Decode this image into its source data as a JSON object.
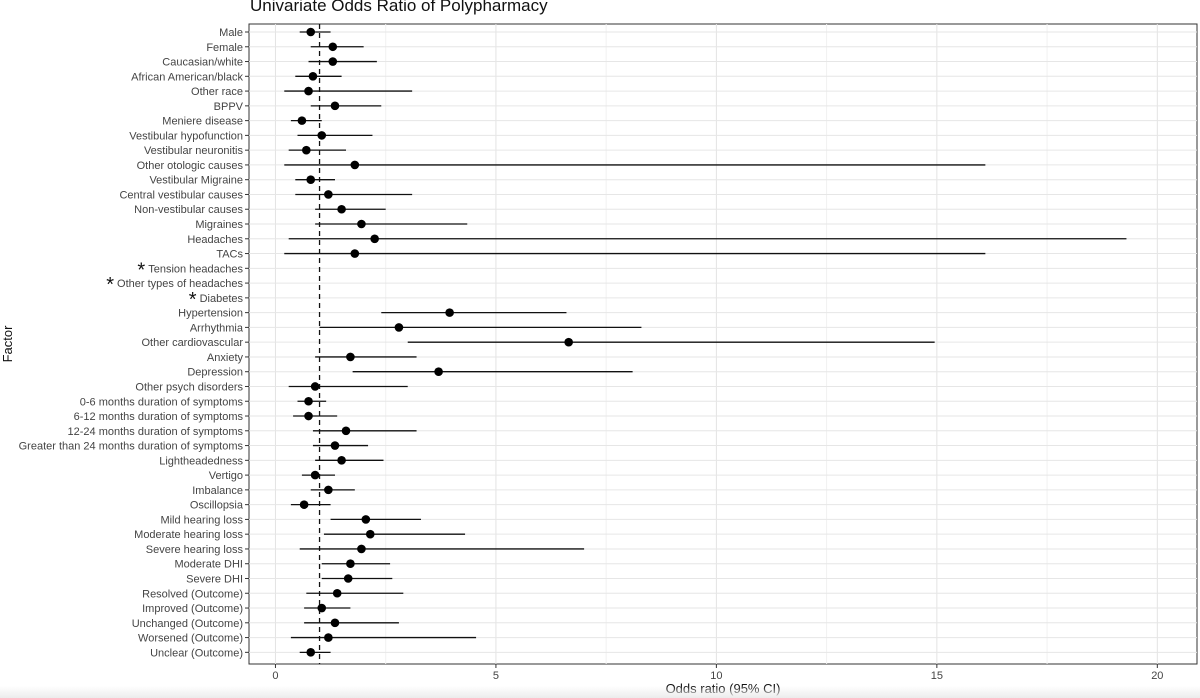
{
  "chart_data": {
    "type": "scatter",
    "title": "Univariate Odds Ratio of Polypharmacy",
    "xlabel": "Odds ratio (95% CI)",
    "ylabel": "Factor",
    "xlim": [
      -0.6,
      20.9
    ],
    "xticks": [
      0,
      5,
      10,
      15,
      20
    ],
    "reference_line": 1,
    "grid": true,
    "significance_marker": "*",
    "factors": [
      {
        "label": "Male",
        "or": 0.8,
        "lo": 0.55,
        "hi": 1.25
      },
      {
        "label": "Female",
        "or": 1.3,
        "lo": 0.8,
        "hi": 2.0
      },
      {
        "label": "Caucasian/white",
        "or": 1.3,
        "lo": 0.75,
        "hi": 2.3
      },
      {
        "label": "African American/black",
        "or": 0.85,
        "lo": 0.45,
        "hi": 1.5
      },
      {
        "label": "Other race",
        "or": 0.75,
        "lo": 0.2,
        "hi": 3.1
      },
      {
        "label": "BPPV",
        "or": 1.35,
        "lo": 0.8,
        "hi": 2.4
      },
      {
        "label": "Meniere disease",
        "or": 0.6,
        "lo": 0.35,
        "hi": 1.05
      },
      {
        "label": "Vestibular hypofunction",
        "or": 1.05,
        "lo": 0.5,
        "hi": 2.2
      },
      {
        "label": "Vestibular neuronitis",
        "or": 0.7,
        "lo": 0.3,
        "hi": 1.6
      },
      {
        "label": "Other otologic causes",
        "or": 1.8,
        "lo": 0.2,
        "hi": 16.1
      },
      {
        "label": "Vestibular Migraine",
        "or": 0.8,
        "lo": 0.45,
        "hi": 1.35
      },
      {
        "label": "Central vestibular causes",
        "or": 1.2,
        "lo": 0.45,
        "hi": 3.1
      },
      {
        "label": "Non-vestibular causes",
        "or": 1.5,
        "lo": 0.9,
        "hi": 2.5
      },
      {
        "label": "Migraines",
        "or": 1.95,
        "lo": 0.9,
        "hi": 4.35
      },
      {
        "label": "Headaches",
        "or": 2.25,
        "lo": 0.3,
        "hi": 19.3
      },
      {
        "label": "TACs",
        "or": 1.8,
        "lo": 0.2,
        "hi": 16.1
      },
      {
        "label": "Tension headaches",
        "or": null,
        "lo": null,
        "hi": null,
        "flagged": true
      },
      {
        "label": "Other types of headaches",
        "or": null,
        "lo": null,
        "hi": null,
        "flagged": true
      },
      {
        "label": "Diabetes",
        "or": null,
        "lo": null,
        "hi": null,
        "flagged": true
      },
      {
        "label": "Hypertension",
        "or": 3.95,
        "lo": 2.4,
        "hi": 6.6
      },
      {
        "label": "Arrhythmia",
        "or": 2.8,
        "lo": 1.0,
        "hi": 8.3
      },
      {
        "label": "Other cardiovascular",
        "or": 6.65,
        "lo": 3.0,
        "hi": 14.95
      },
      {
        "label": "Anxiety",
        "or": 1.7,
        "lo": 0.9,
        "hi": 3.2
      },
      {
        "label": "Depression",
        "or": 3.7,
        "lo": 1.75,
        "hi": 8.1
      },
      {
        "label": "Other psych disorders",
        "or": 0.9,
        "lo": 0.3,
        "hi": 3.0
      },
      {
        "label": "0-6 months duration of symptoms",
        "or": 0.75,
        "lo": 0.5,
        "hi": 1.15
      },
      {
        "label": "6-12 months duration of symptoms",
        "or": 0.75,
        "lo": 0.4,
        "hi": 1.4
      },
      {
        "label": "12-24 months duration of symptoms",
        "or": 1.6,
        "lo": 0.85,
        "hi": 3.2
      },
      {
        "label": "Greater than 24 months duration of symptoms",
        "or": 1.35,
        "lo": 0.85,
        "hi": 2.1
      },
      {
        "label": "Lightheadedness",
        "or": 1.5,
        "lo": 0.9,
        "hi": 2.45
      },
      {
        "label": "Vertigo",
        "or": 0.9,
        "lo": 0.6,
        "hi": 1.35
      },
      {
        "label": "Imbalance",
        "or": 1.2,
        "lo": 0.8,
        "hi": 1.8
      },
      {
        "label": "Oscillopsia",
        "or": 0.65,
        "lo": 0.35,
        "hi": 1.25
      },
      {
        "label": "Mild hearing loss",
        "or": 2.05,
        "lo": 1.25,
        "hi": 3.3
      },
      {
        "label": "Moderate hearing loss",
        "or": 2.15,
        "lo": 1.1,
        "hi": 4.3
      },
      {
        "label": "Severe hearing loss",
        "or": 1.95,
        "lo": 0.55,
        "hi": 7.0
      },
      {
        "label": "Moderate DHI",
        "or": 1.7,
        "lo": 1.05,
        "hi": 2.6
      },
      {
        "label": "Severe DHI",
        "or": 1.65,
        "lo": 1.05,
        "hi": 2.65
      },
      {
        "label": "Resolved (Outcome)",
        "or": 1.4,
        "lo": 0.7,
        "hi": 2.9
      },
      {
        "label": "Improved (Outcome)",
        "or": 1.05,
        "lo": 0.65,
        "hi": 1.7
      },
      {
        "label": "Unchanged (Outcome)",
        "or": 1.35,
        "lo": 0.65,
        "hi": 2.8
      },
      {
        "label": "Worsened (Outcome)",
        "or": 1.2,
        "lo": 0.35,
        "hi": 4.55
      },
      {
        "label": "Unclear (Outcome)",
        "or": 0.8,
        "lo": 0.55,
        "hi": 1.25
      }
    ]
  }
}
